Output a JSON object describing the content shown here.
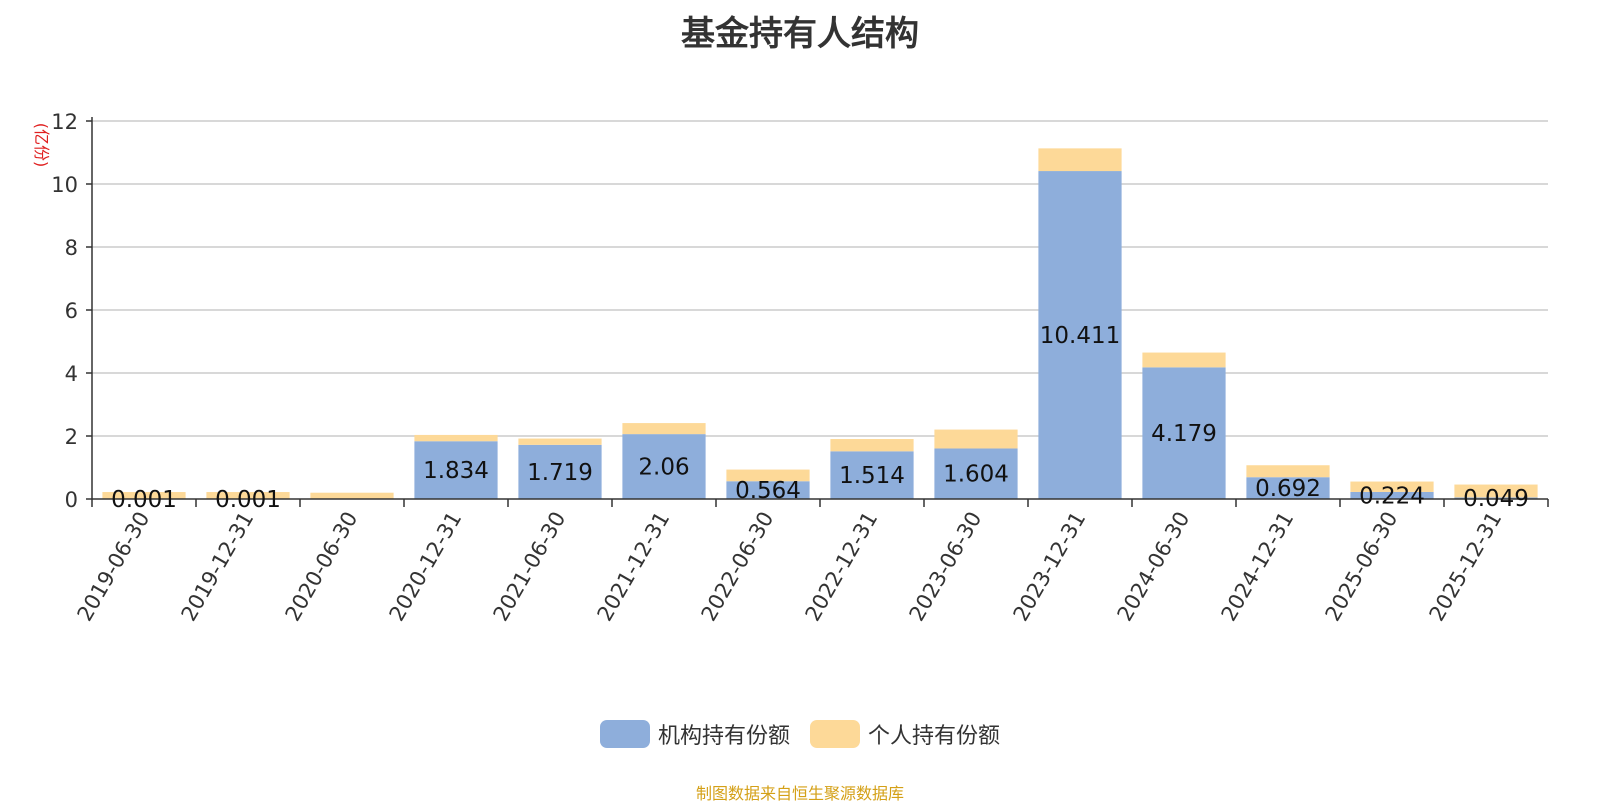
{
  "chart_data": {
    "type": "bar",
    "stacked": true,
    "title": "基金持有人结构",
    "y_unit": "(亿份)",
    "xlabel": "",
    "ylabel": "",
    "ylim": [
      0,
      12
    ],
    "yticks": [
      0,
      2,
      4,
      6,
      8,
      10,
      12
    ],
    "grid": true,
    "legend_position": "bottom",
    "categories": [
      "2019-06-30",
      "2019-12-31",
      "2020-06-30",
      "2020-12-31",
      "2021-06-30",
      "2021-12-31",
      "2022-06-30",
      "2022-12-31",
      "2023-06-30",
      "2023-12-31",
      "2024-06-30",
      "2024-12-31",
      "2025-06-30",
      "2025-12-31"
    ],
    "series": [
      {
        "name": "机构持有份额",
        "color": "#8eaedb",
        "values": [
          0.001,
          0.001,
          0,
          1.834,
          1.719,
          2.06,
          0.564,
          1.514,
          1.604,
          10.411,
          4.179,
          0.692,
          0.224,
          0.049
        ],
        "labels": [
          "0.001",
          "0.001",
          "",
          "1.834",
          "1.719",
          "2.06",
          "0.564",
          "1.514",
          "1.604",
          "10.411",
          "4.179",
          "0.692",
          "0.224",
          "0.049"
        ]
      },
      {
        "name": "个人持有份额",
        "color": "#fdd998",
        "values": [
          0.22,
          0.22,
          0.2,
          0.2,
          0.2,
          0.35,
          0.37,
          0.39,
          0.6,
          0.72,
          0.47,
          0.38,
          0.33,
          0.41
        ]
      }
    ]
  },
  "footer": {
    "source": "制图数据来自恒生聚源数据库"
  }
}
